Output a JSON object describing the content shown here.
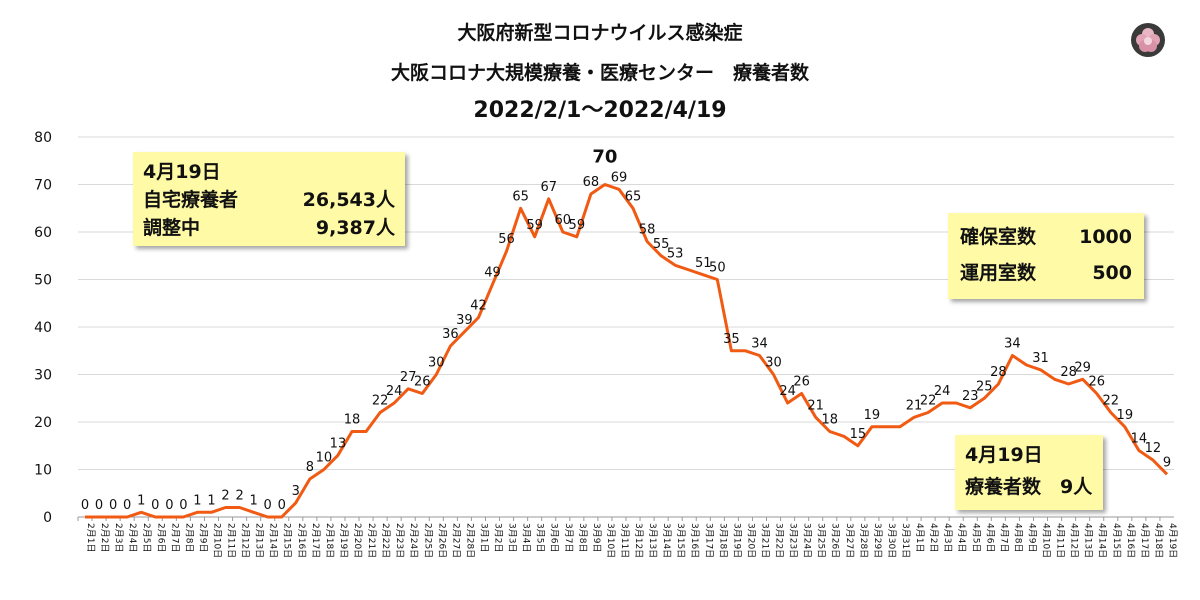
{
  "header": {
    "title_line1": "大阪府新型コロナウイルス感染症",
    "title_line2": "大阪コロナ大規模療養・医療センター　療養者数",
    "period": "2022/2/1～2022/4/19"
  },
  "logo": {
    "icon": "flower-logo-icon"
  },
  "callout_home": {
    "date": "4月19日",
    "home_label": "自宅療養者",
    "home_value": "26,543人",
    "adjusting_label": "調整中",
    "adjusting_value": "9,387人"
  },
  "callout_rooms": {
    "secured_label": "確保室数",
    "secured_value": "1000",
    "operating_label": "運用室数",
    "operating_value": "500"
  },
  "callout_today": {
    "date": "4月19日",
    "patients_text": "療養者数　9人"
  },
  "colors": {
    "line": "#f05a12",
    "callout_bg": "#fffaa6",
    "grid": "#d9d9d9"
  },
  "chart_data": {
    "type": "line",
    "ylim": [
      0,
      80
    ],
    "yticks": [
      0,
      10,
      20,
      30,
      40,
      50,
      60,
      70,
      80
    ],
    "grid": true,
    "categories": [
      "2月1日",
      "2月2日",
      "2月3日",
      "2月4日",
      "2月5日",
      "2月6日",
      "2月7日",
      "2月8日",
      "2月9日",
      "2月10日",
      "2月11日",
      "2月12日",
      "2月13日",
      "2月14日",
      "2月15日",
      "2月16日",
      "2月17日",
      "2月18日",
      "2月19日",
      "2月20日",
      "2月21日",
      "2月22日",
      "2月23日",
      "2月24日",
      "2月25日",
      "2月26日",
      "2月27日",
      "2月28日",
      "3月1日",
      "3月2日",
      "3月3日",
      "3月4日",
      "3月5日",
      "3月6日",
      "3月7日",
      "3月8日",
      "3月9日",
      "3月10日",
      "3月11日",
      "3月12日",
      "3月13日",
      "3月14日",
      "3月15日",
      "3月16日",
      "3月17日",
      "3月18日",
      "3月19日",
      "3月20日",
      "3月21日",
      "3月22日",
      "3月23日",
      "3月24日",
      "3月25日",
      "3月26日",
      "3月27日",
      "3月28日",
      "3月29日",
      "3月30日",
      "3月31日",
      "4月1日",
      "4月2日",
      "4月3日",
      "4月4日",
      "4月5日",
      "4月6日",
      "4月7日",
      "4月8日",
      "4月9日",
      "4月10日",
      "4月11日",
      "4月12日",
      "4月13日",
      "4月14日",
      "4月15日",
      "4月16日",
      "4月17日",
      "4月18日",
      "4月19日"
    ],
    "series": [
      {
        "values": [
          0,
          0,
          0,
          0,
          1,
          0,
          0,
          0,
          1,
          1,
          2,
          2,
          1,
          0,
          0,
          3,
          8,
          10,
          13,
          18,
          18,
          22,
          24,
          27,
          26,
          30,
          36,
          39,
          42,
          49,
          56,
          65,
          59,
          67,
          60,
          59,
          68,
          70,
          69,
          65,
          58,
          55,
          53,
          52,
          51,
          50,
          35,
          35,
          34,
          30,
          24,
          26,
          21,
          18,
          17,
          15,
          19,
          19,
          19,
          21,
          22,
          24,
          24,
          23,
          25,
          28,
          34,
          32,
          31,
          29,
          28,
          29,
          26,
          22,
          19,
          14,
          12,
          9
        ]
      }
    ],
    "data_labels": [
      "0",
      "0",
      "0",
      "0",
      "1",
      "0",
      "0",
      "0",
      "1",
      "1",
      "2",
      "2",
      "1",
      "0",
      "0",
      "3",
      "8",
      "10",
      "13",
      "18",
      "",
      "22",
      "24",
      "27",
      "26",
      "30",
      "36",
      "39",
      "42",
      "49",
      "56",
      "65",
      "59",
      "67",
      "60",
      "59",
      "68",
      "70",
      "69",
      "65",
      "58",
      "55",
      "53",
      "",
      "51",
      "50",
      "35",
      "",
      "34",
      "30",
      "24",
      "26",
      "21",
      "18",
      "",
      "15",
      "19",
      "",
      "",
      "21",
      "22",
      "24",
      "",
      "23",
      "25",
      "28",
      "34",
      "",
      "31",
      "",
      "28",
      "29",
      "26",
      "22",
      "19",
      "14",
      "12",
      "9"
    ],
    "peak_label": "70"
  }
}
